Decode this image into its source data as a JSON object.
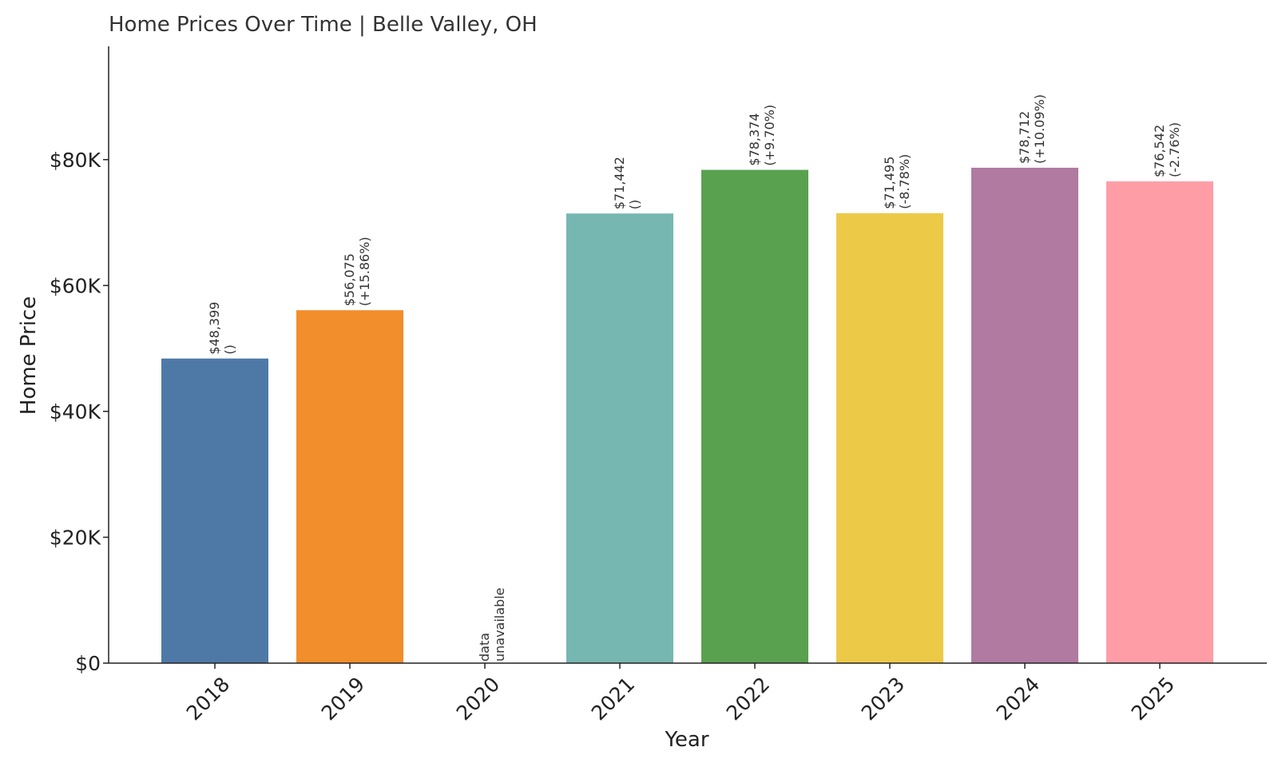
{
  "chart_data": {
    "type": "bar",
    "title": "Home Prices Over Time | Belle Valley, OH",
    "xlabel": "Year",
    "ylabel": "Home Price",
    "categories": [
      "2018",
      "2019",
      "2020",
      "2021",
      "2022",
      "2023",
      "2024",
      "2025"
    ],
    "values": [
      48399,
      56075,
      null,
      71442,
      78374,
      71495,
      78712,
      76542
    ],
    "value_labels": [
      "$48,399",
      "$56,075",
      "",
      "$71,442",
      "$78,374",
      "$71,495",
      "$78,712",
      "$76,542"
    ],
    "change_labels": [
      "()",
      "(+15.86%)",
      "",
      "()",
      "(+9.70%)",
      "(-8.78%)",
      "(+10.09%)",
      "(-2.76%)"
    ],
    "missing_label": [
      "data",
      "unavailable"
    ],
    "colors": [
      "#4e79a7",
      "#f28e2b",
      "#e15759",
      "#76b7b2",
      "#59a14f",
      "#edc948",
      "#b07aa1",
      "#ff9da7"
    ],
    "ylim": [
      0,
      98000
    ],
    "yticks": [
      0,
      20000,
      40000,
      60000,
      80000
    ],
    "ytick_labels": [
      "$0",
      "$20K",
      "$40K",
      "$60K",
      "$80K"
    ],
    "grid": false,
    "legend": "none"
  }
}
